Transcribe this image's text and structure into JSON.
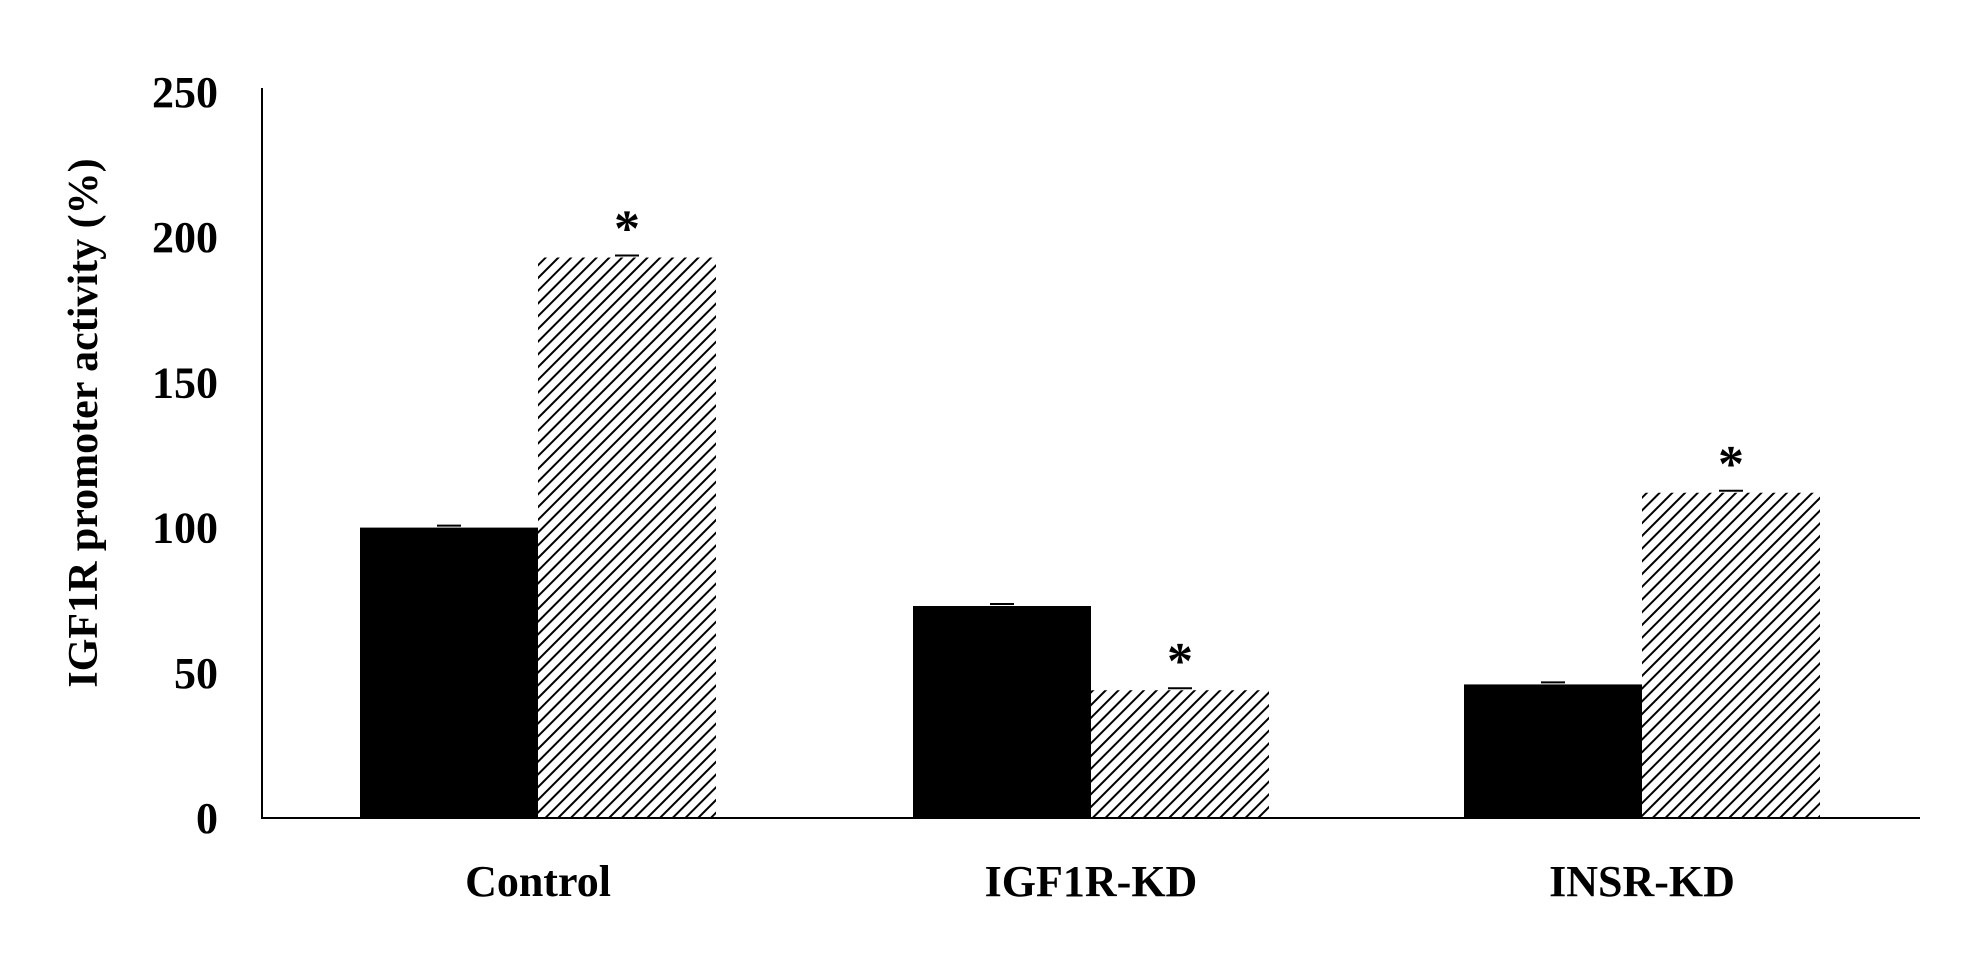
{
  "chart_data": {
    "type": "bar",
    "title": "",
    "xlabel": "",
    "ylabel": "IGF1R promoter activity (%)",
    "ylim": [
      0,
      250
    ],
    "yticks": [
      "0",
      "50",
      "100",
      "150",
      "200",
      "250"
    ],
    "categories": [
      "Control",
      "IGF1R-KD",
      "INSR-KD"
    ],
    "series": [
      {
        "values": [
          100,
          73,
          46
        ],
        "color": "#000000",
        "fill": "solid"
      },
      {
        "values": [
          193,
          44,
          112
        ],
        "color": "#000000",
        "fill": "hatched"
      }
    ],
    "annotations": [
      {
        "category": "Control",
        "series": 1,
        "text": "*"
      },
      {
        "category": "IGF1R-KD",
        "series": 1,
        "text": "*"
      },
      {
        "category": "INSR-KD",
        "series": 1,
        "text": "*"
      }
    ],
    "grid": false,
    "legend": "none"
  }
}
